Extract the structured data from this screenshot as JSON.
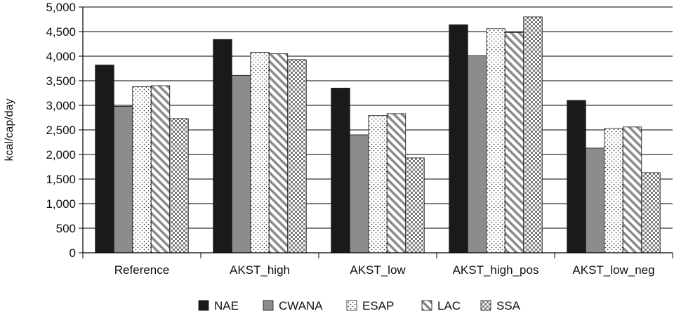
{
  "chart_data": {
    "type": "bar",
    "title": "",
    "xlabel": "",
    "ylabel": "kcal/cap/day",
    "ylim": [
      0,
      5000
    ],
    "yticks": [
      0,
      500,
      1000,
      1500,
      2000,
      2500,
      3000,
      3500,
      4000,
      4500,
      5000
    ],
    "ytick_labels": [
      "0",
      "500",
      "1,000",
      "1,500",
      "2,000",
      "2,500",
      "3,000",
      "3,500",
      "4,000",
      "4,500",
      "5,000"
    ],
    "grid": true,
    "legend_position": "bottom",
    "categories": [
      "Reference",
      "AKST_high",
      "AKST_low",
      "AKST_high_pos",
      "AKST_low_neg"
    ],
    "series": [
      {
        "name": "NAE",
        "values": [
          3820,
          4340,
          3350,
          4640,
          3100
        ],
        "pattern": "solid-black"
      },
      {
        "name": "CWANA",
        "values": [
          2980,
          3610,
          2400,
          4010,
          2130
        ],
        "pattern": "solid-gray"
      },
      {
        "name": "ESAP",
        "values": [
          3380,
          4080,
          2790,
          4560,
          2530
        ],
        "pattern": "dots"
      },
      {
        "name": "LAC",
        "values": [
          3400,
          4050,
          2830,
          4480,
          2560
        ],
        "pattern": "diagonal"
      },
      {
        "name": "SSA",
        "values": [
          2730,
          3930,
          1930,
          4800,
          1630
        ],
        "pattern": "checker"
      }
    ],
    "colors": {
      "NAE": "#1a1a1a",
      "CWANA": "#8c8c8c",
      "ESAP": "#ffffff",
      "LAC": "#ffffff",
      "SSA": "#ffffff"
    }
  }
}
